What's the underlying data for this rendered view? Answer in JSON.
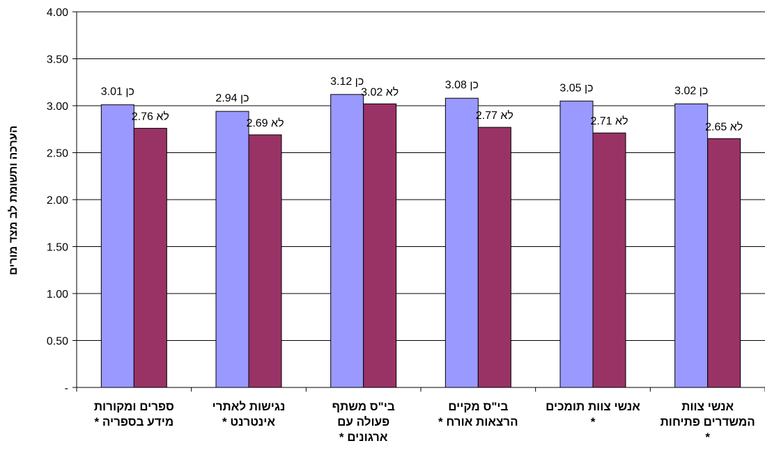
{
  "chart_data": {
    "type": "bar",
    "ylabel": "הערכה ותשומת לב מצד מורים",
    "ylim": [
      0,
      4
    ],
    "yticks": [
      {
        "value": 0,
        "label": "-"
      },
      {
        "value": 0.5,
        "label": "0.50"
      },
      {
        "value": 1,
        "label": "1.00"
      },
      {
        "value": 1.5,
        "label": "1.50"
      },
      {
        "value": 2,
        "label": "2.00"
      },
      {
        "value": 2.5,
        "label": "2.50"
      },
      {
        "value": 3,
        "label": "3.00"
      },
      {
        "value": 3.5,
        "label": "3.50"
      },
      {
        "value": 4,
        "label": "4.00"
      }
    ],
    "grid": true,
    "categories": [
      [
        "ספרים ומקורות",
        "מידע בספריה *"
      ],
      [
        "נגישות לאתרי",
        "אינטרנט *"
      ],
      [
        "בי\"ס משתף",
        "פעולה עם",
        "ארגונים *"
      ],
      [
        "בי\"ס מקיים",
        "הרצאות אורח *"
      ],
      [
        "אנשי צוות תומכים",
        "*"
      ],
      [
        "אנשי צוות",
        "המשדרים פתיחות",
        "*"
      ]
    ],
    "series": [
      {
        "name": "כן",
        "color": "#9999ff",
        "values": [
          3.01,
          2.94,
          3.12,
          3.08,
          3.05,
          3.02
        ],
        "labels": [
          "כן  3.01",
          "כן  2.94",
          "כן  3.12",
          "כן  3.08",
          "כן  3.05",
          "כן  3.02"
        ]
      },
      {
        "name": "לא",
        "color": "#993366",
        "values": [
          2.76,
          2.69,
          3.02,
          2.77,
          2.71,
          2.65
        ],
        "labels": [
          "לא  2.76",
          "לא  2.69",
          "לא  3.02",
          "לא  2.77",
          "לא  2.71",
          "לא  2.65"
        ]
      }
    ]
  }
}
